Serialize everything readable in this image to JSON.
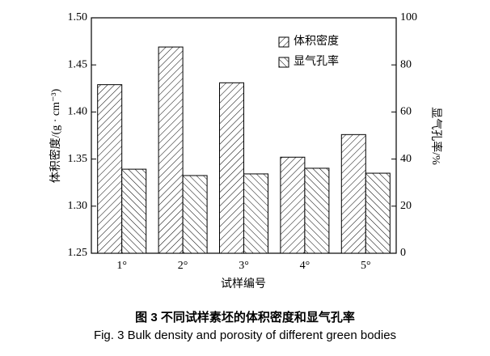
{
  "chart_data": {
    "type": "bar",
    "y_label": "体积密度/(g · cm⁻³)",
    "y2_label": "显气孔率/%",
    "x_label": "试样编号",
    "caption_cn": "图 3   不同试样素坯的体积密度和显气孔率",
    "caption_en": "Fig. 3 Bulk density and porosity of different green bodies",
    "categories": [
      "1°",
      "2°",
      "3°",
      "4°",
      "5°"
    ],
    "series": [
      {
        "name": "体积密度",
        "color": "#000000",
        "hatch": "forward",
        "values": [
          1.429,
          1.469,
          1.431,
          1.352,
          1.376
        ]
      },
      {
        "name": "显气孔率",
        "color": "#000000",
        "hatch": "back",
        "axis": "y2",
        "values": [
          35.7,
          33.0,
          33.7,
          36.1,
          34.0
        ]
      }
    ],
    "ylim": [
      1.25,
      1.5
    ],
    "yticks": [
      1.25,
      {
        "value": 1.3,
        "label": "1.30"
      },
      1.35,
      {
        "value": 1.4,
        "label": "1.40"
      },
      1.45,
      {
        "value": 1.5,
        "label": "1.50"
      }
    ],
    "y2lim": [
      0,
      100
    ],
    "y2ticks": [
      0,
      20,
      40,
      60,
      80,
      100
    ],
    "legend": "upper-right"
  }
}
